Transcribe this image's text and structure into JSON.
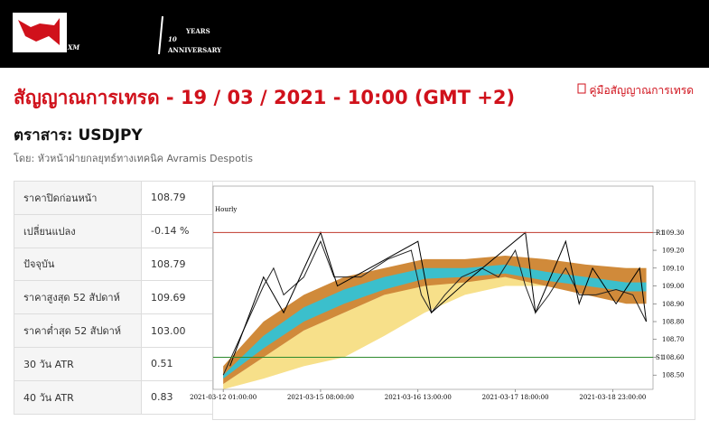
{
  "header": {
    "logo": "XM",
    "badge": "10",
    "badge_sub": "YEARS",
    "badge_note": "ANNIVERSARY"
  },
  "title": "สัญญาณการเทรด - 19 / 03 / 2021 - 10:00 (GMT +2)",
  "manual_link": "คู่มือสัญญาณการเทรด",
  "instrument": "ตราสาร: USDJPY",
  "author": "โดย: หัวหน้าฝ่ายกลยุทธ์ทางเทคนิค Avramis Despotis",
  "table": {
    "rows": [
      [
        "ราคาปิดก่อนหน้า",
        "108.79"
      ],
      [
        "เปลี่ยนแปลง",
        "-0.14 %"
      ],
      [
        "ปัจจุบัน",
        "108.79"
      ],
      [
        "ราคาสูงสุด 52 สัปดาห์",
        "109.69"
      ],
      [
        "ราคาต่ำสุด 52 สัปดาห์",
        "103.00"
      ],
      [
        "30 วัน ATR",
        "0.51"
      ],
      [
        "40 วัน ATR",
        "0.83"
      ]
    ]
  },
  "chart_data": {
    "type": "line",
    "label": "Hourly",
    "xlim": [
      -3,
      128
    ],
    "xticks": [
      {
        "value": 0,
        "label": "2021-03-12 01:00:00"
      },
      {
        "value": 29,
        "label": "2021-03-15 08:00:00"
      },
      {
        "value": 58,
        "label": "2021-03-16 13:00:00"
      },
      {
        "value": 87,
        "label": "2021-03-17 18:00:00"
      },
      {
        "value": 116,
        "label": "2021-03-18 23:00:00"
      }
    ],
    "ylim": [
      108.42,
      109.56
    ],
    "yticks": [
      {
        "value": 108.5,
        "label": "108.50"
      },
      {
        "value": 108.6,
        "label": "108.60"
      },
      {
        "value": 108.7,
        "label": "108.70"
      },
      {
        "value": 108.8,
        "label": "108.80"
      },
      {
        "value": 108.9,
        "label": "108.90"
      },
      {
        "value": 109.0,
        "label": "109.00"
      },
      {
        "value": 109.1,
        "label": "109.10"
      },
      {
        "value": 109.2,
        "label": "109.20"
      },
      {
        "value": 109.3,
        "label": "109.30"
      }
    ],
    "bands": [
      {
        "color": "#f7e08a",
        "x": [
          0,
          12,
          24,
          36,
          48,
          60,
          72,
          84,
          96,
          108,
          120,
          126
        ],
        "upper": [
          108.45,
          108.6,
          108.75,
          108.85,
          108.95,
          109.02,
          109.05,
          109.1,
          109.1,
          109.1,
          109.1,
          109.1
        ],
        "lower": [
          108.42,
          108.48,
          108.55,
          108.6,
          108.72,
          108.85,
          108.95,
          109.0,
          109.0,
          109.0,
          109.0,
          109.0
        ]
      },
      {
        "color": "#d08a3a",
        "x": [
          0,
          12,
          24,
          36,
          48,
          60,
          72,
          84,
          96,
          108,
          120,
          126
        ],
        "upper": [
          108.55,
          108.8,
          108.95,
          109.05,
          109.1,
          109.15,
          109.15,
          109.17,
          109.15,
          109.12,
          109.1,
          109.1
        ],
        "lower": [
          108.45,
          108.6,
          108.75,
          108.85,
          108.95,
          109.0,
          109.02,
          109.05,
          109.0,
          108.95,
          108.9,
          108.9
        ]
      },
      {
        "color": "#3bbfcc",
        "x": [
          0,
          12,
          24,
          36,
          48,
          60,
          72,
          84,
          96,
          108,
          120,
          126
        ],
        "upper": [
          108.5,
          108.72,
          108.88,
          108.98,
          109.05,
          109.1,
          109.1,
          109.12,
          109.08,
          109.05,
          109.02,
          109.02
        ],
        "lower": [
          108.48,
          108.65,
          108.8,
          108.9,
          108.98,
          109.04,
          109.05,
          109.07,
          109.03,
          109.0,
          108.97,
          108.97
        ]
      }
    ],
    "series": [
      {
        "color": "#222222",
        "x": [
          0,
          6,
          12,
          15,
          18,
          24,
          29,
          33,
          41,
          49,
          56,
          59,
          62,
          66,
          71,
          77,
          82,
          87,
          90,
          93,
          97,
          102,
          106,
          111,
          117,
          122,
          126
        ],
        "values": [
          108.5,
          108.75,
          109.0,
          109.1,
          108.95,
          109.05,
          109.25,
          109.05,
          109.05,
          109.15,
          109.2,
          108.95,
          108.85,
          108.95,
          109.05,
          109.1,
          109.05,
          109.2,
          109.0,
          108.85,
          108.95,
          109.1,
          108.95,
          108.95,
          108.98,
          108.95,
          108.8
        ]
      },
      {
        "color": "#000000",
        "x": [
          2,
          12,
          18,
          29,
          34,
          58,
          62,
          74,
          90,
          93,
          102,
          106,
          110,
          117,
          124,
          126
        ],
        "values": [
          108.55,
          109.05,
          108.85,
          109.3,
          109.0,
          109.25,
          108.85,
          109.05,
          109.3,
          108.85,
          109.25,
          108.9,
          109.1,
          108.9,
          109.1,
          108.8
        ]
      }
    ],
    "levels": [
      {
        "name": "R1",
        "value": 109.3,
        "color": "#c0392b"
      },
      {
        "name": "S1",
        "value": 108.6,
        "color": "#2e8b2e"
      }
    ]
  }
}
